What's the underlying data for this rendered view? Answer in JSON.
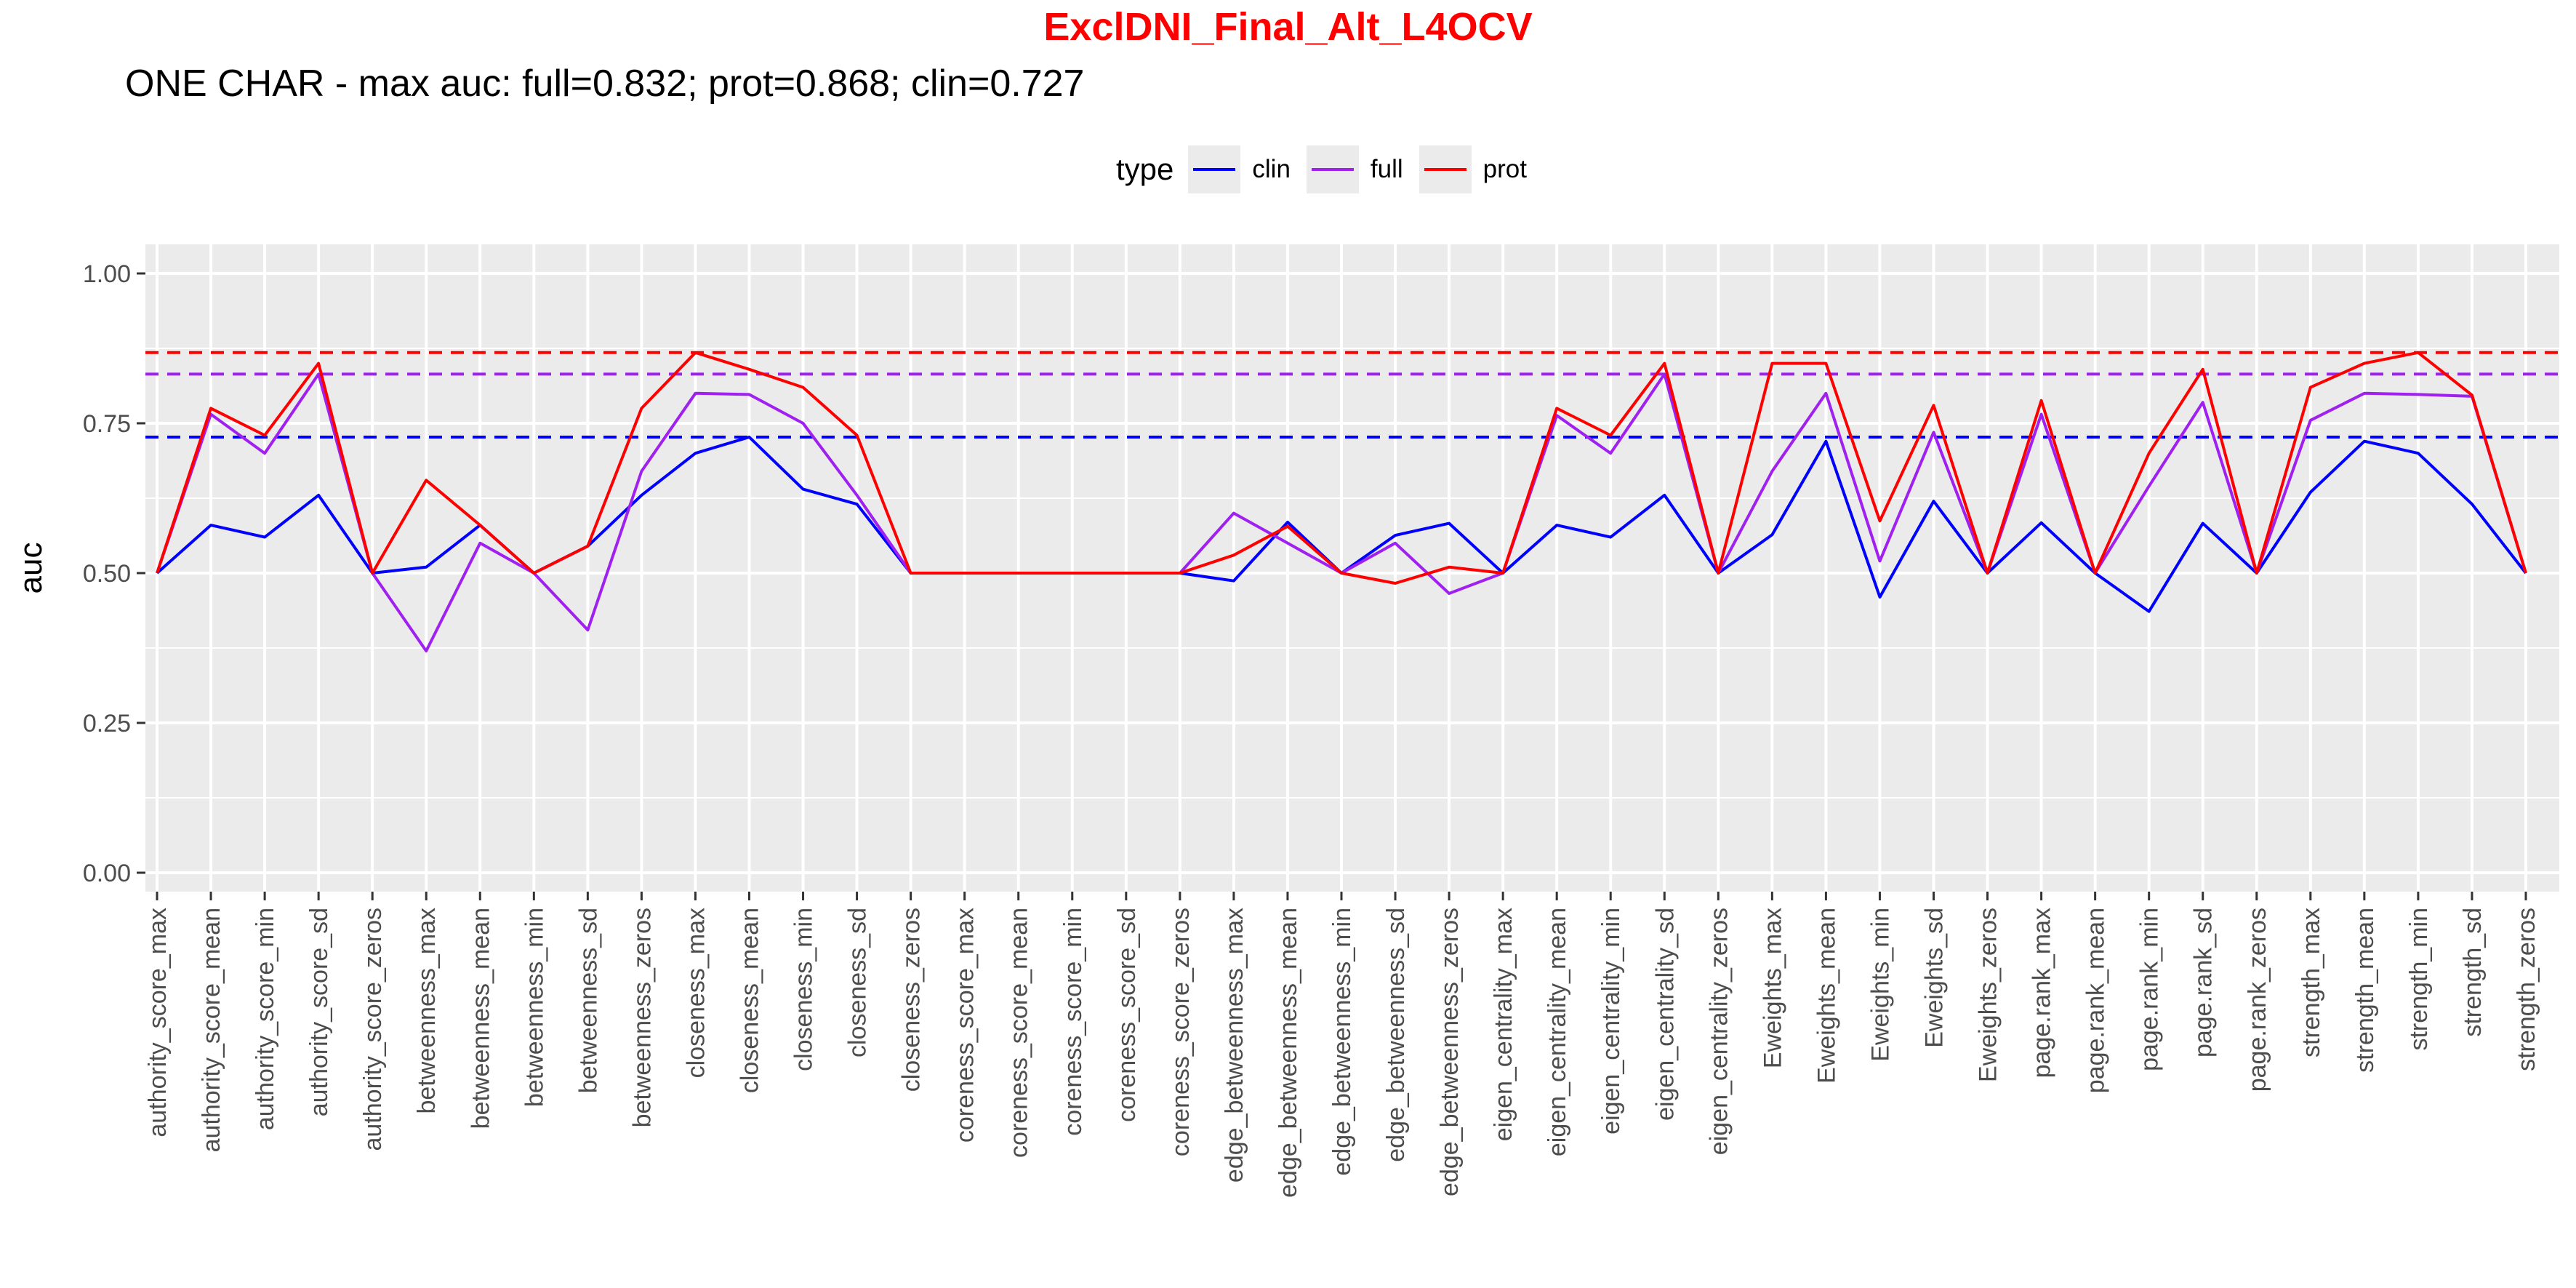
{
  "title": "ExclDNI_Final_Alt_L4OCV",
  "subtitle": "ONE CHAR - max auc: full=0.832; prot=0.868; clin=0.727",
  "colors": {
    "title": "#ff0000",
    "clin": "#0000ff",
    "full": "#a020f0",
    "prot": "#ff0000",
    "panel": "#ebebeb",
    "grid": "#ffffff"
  },
  "legend": {
    "title": "type",
    "items": [
      {
        "label": "clin",
        "color": "#0000ff"
      },
      {
        "label": "full",
        "color": "#a020f0"
      },
      {
        "label": "prot",
        "color": "#ff0000"
      }
    ]
  },
  "chart_data": {
    "type": "line",
    "xlabel": "",
    "ylabel": "auc",
    "ylim": [
      0,
      1
    ],
    "y_ticks": [
      "0.00",
      "0.25",
      "0.50",
      "0.75",
      "1.00"
    ],
    "y_tick_values": [
      0,
      0.25,
      0.5,
      0.75,
      1.0
    ],
    "grid": true,
    "legend_position": "top",
    "categories": [
      "authority_score_max",
      "authority_score_mean",
      "authority_score_min",
      "authority_score_sd",
      "authority_score_zeros",
      "betweenness_max",
      "betweenness_mean",
      "betweenness_min",
      "betweenness_sd",
      "betweenness_zeros",
      "closeness_max",
      "closeness_mean",
      "closeness_min",
      "closeness_sd",
      "closeness_zeros",
      "coreness_score_max",
      "coreness_score_mean",
      "coreness_score_min",
      "coreness_score_sd",
      "coreness_score_zeros",
      "edge_betweenness_max",
      "edge_betweenness_mean",
      "edge_betweenness_min",
      "edge_betweenness_sd",
      "edge_betweenness_zeros",
      "eigen_centrality_max",
      "eigen_centrality_mean",
      "eigen_centrality_min",
      "eigen_centrality_sd",
      "eigen_centrality_zeros",
      "Eweights_max",
      "Eweights_mean",
      "Eweights_min",
      "Eweights_sd",
      "Eweights_zeros",
      "page.rank_max",
      "page.rank_mean",
      "page.rank_min",
      "page.rank_sd",
      "page.rank_zeros",
      "strength_max",
      "strength_mean",
      "strength_min",
      "strength_sd",
      "strength_zeros"
    ],
    "series": [
      {
        "name": "clin",
        "color": "#0000ff",
        "values": [
          0.5,
          0.58,
          0.56,
          0.63,
          0.5,
          0.51,
          0.58,
          0.5,
          0.545,
          0.63,
          0.7,
          0.727,
          0.64,
          0.615,
          0.5,
          0.5,
          0.5,
          0.5,
          0.5,
          0.5,
          0.487,
          0.585,
          0.5,
          0.563,
          0.583,
          0.5,
          0.58,
          0.56,
          0.63,
          0.5,
          0.564,
          0.72,
          0.46,
          0.62,
          0.5,
          0.584,
          0.5,
          0.436,
          0.583,
          0.5,
          0.635,
          0.72,
          0.7,
          0.615,
          0.5
        ]
      },
      {
        "name": "full",
        "color": "#a020f0",
        "values": [
          0.5,
          0.765,
          0.7,
          0.832,
          0.5,
          0.37,
          0.55,
          0.5,
          0.405,
          0.67,
          0.8,
          0.798,
          0.75,
          0.63,
          0.5,
          0.5,
          0.5,
          0.5,
          0.5,
          0.5,
          0.6,
          0.55,
          0.5,
          0.55,
          0.466,
          0.5,
          0.763,
          0.7,
          0.832,
          0.5,
          0.67,
          0.8,
          0.52,
          0.735,
          0.5,
          0.765,
          0.5,
          0.645,
          0.785,
          0.5,
          0.755,
          0.8,
          0.798,
          0.795,
          0.5
        ]
      },
      {
        "name": "prot",
        "color": "#ff0000",
        "values": [
          0.5,
          0.775,
          0.73,
          0.85,
          0.5,
          0.655,
          0.58,
          0.5,
          0.545,
          0.775,
          0.868,
          0.84,
          0.81,
          0.73,
          0.5,
          0.5,
          0.5,
          0.5,
          0.5,
          0.5,
          0.53,
          0.578,
          0.5,
          0.483,
          0.51,
          0.5,
          0.775,
          0.73,
          0.85,
          0.5,
          0.85,
          0.85,
          0.587,
          0.78,
          0.5,
          0.788,
          0.5,
          0.7,
          0.84,
          0.5,
          0.81,
          0.85,
          0.868,
          0.797,
          0.5
        ]
      }
    ],
    "reference_lines": [
      {
        "series": "prot",
        "value": 0.868,
        "color": "#ff0000",
        "style": "dashed"
      },
      {
        "series": "full",
        "value": 0.832,
        "color": "#a020f0",
        "style": "dashed"
      },
      {
        "series": "clin",
        "value": 0.727,
        "color": "#0000ff",
        "style": "dashed"
      }
    ]
  }
}
